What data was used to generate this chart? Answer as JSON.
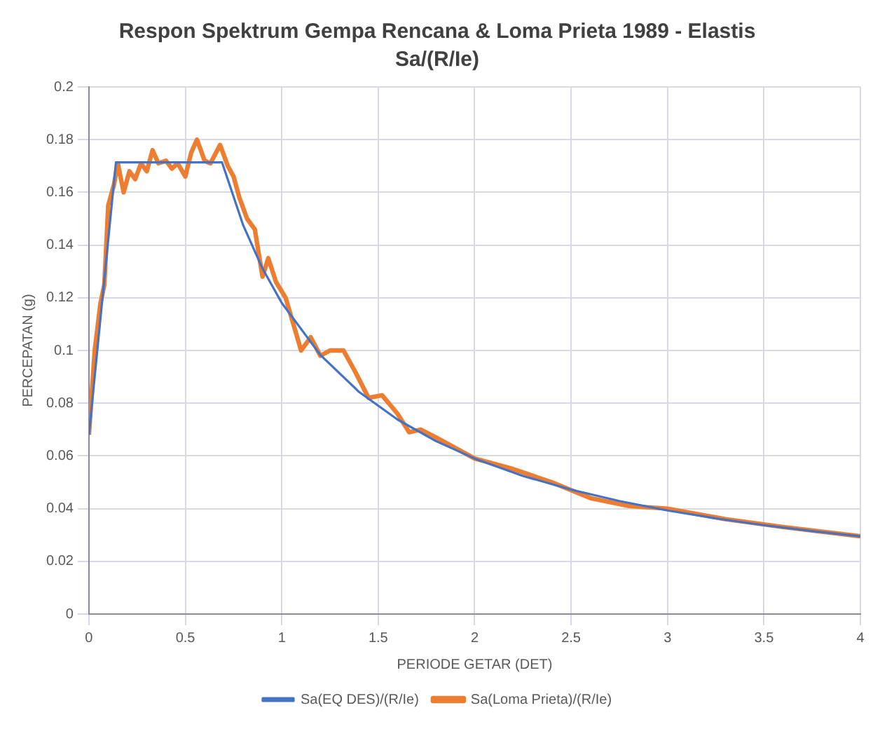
{
  "chart_data": {
    "type": "line",
    "title": "Respon Spektrum Gempa Rencana & Loma Prieta 1989 - Elastis",
    "subtitle": "Sa/(R/Ie)",
    "xlabel": "PERIODE GETAR (DET)",
    "ylabel": "PERCEPATAN (g)",
    "xlim": [
      0,
      4
    ],
    "xticks": [
      0,
      0.5,
      1,
      1.5,
      2,
      2.5,
      3,
      3.5,
      4
    ],
    "ylim": [
      0,
      0.2
    ],
    "yticks": [
      0,
      0.02,
      0.04,
      0.06,
      0.08,
      0.1,
      0.12,
      0.14,
      0.16,
      0.18,
      0.2
    ],
    "grid": true,
    "legend": "bottom",
    "marker": "none",
    "line_style": "solid",
    "series": [
      {
        "name": "Sa(EQ DES)/(R/Ie)",
        "color": "#4472c4",
        "x": [
          0,
          0.14,
          0.69,
          0.8,
          0.9,
          1.0,
          1.2,
          1.4,
          1.6,
          1.8,
          2.0,
          2.25,
          2.5,
          2.75,
          3.0,
          3.25,
          3.5,
          3.75,
          4.0
        ],
        "values": [
          0.068,
          0.1714,
          0.1714,
          0.1475,
          0.1311,
          0.118,
          0.0983,
          0.0843,
          0.0738,
          0.0656,
          0.059,
          0.0524,
          0.0472,
          0.0429,
          0.0393,
          0.0363,
          0.0337,
          0.0315,
          0.0295
        ]
      },
      {
        "name": "Sa(Loma Prieta)/(R/Ie)",
        "color": "#ed7d31",
        "x": [
          0,
          0.03,
          0.06,
          0.08,
          0.1,
          0.13,
          0.15,
          0.18,
          0.21,
          0.24,
          0.27,
          0.3,
          0.33,
          0.36,
          0.4,
          0.43,
          0.46,
          0.5,
          0.53,
          0.56,
          0.6,
          0.63,
          0.68,
          0.72,
          0.75,
          0.78,
          0.82,
          0.86,
          0.9,
          0.93,
          0.97,
          1.02,
          1.06,
          1.1,
          1.15,
          1.2,
          1.25,
          1.32,
          1.38,
          1.45,
          1.52,
          1.6,
          1.66,
          1.72,
          1.8,
          1.9,
          2.0,
          2.2,
          2.4,
          2.5,
          2.6,
          2.8,
          3.0,
          3.3,
          3.6,
          4.0
        ],
        "values": [
          0.068,
          0.1,
          0.118,
          0.125,
          0.155,
          0.163,
          0.171,
          0.16,
          0.168,
          0.165,
          0.171,
          0.168,
          0.176,
          0.171,
          0.172,
          0.169,
          0.171,
          0.166,
          0.175,
          0.18,
          0.172,
          0.171,
          0.178,
          0.17,
          0.166,
          0.158,
          0.15,
          0.146,
          0.128,
          0.135,
          0.126,
          0.12,
          0.11,
          0.1,
          0.105,
          0.098,
          0.1,
          0.1,
          0.092,
          0.082,
          0.083,
          0.076,
          0.069,
          0.07,
          0.067,
          0.063,
          0.059,
          0.055,
          0.05,
          0.047,
          0.044,
          0.041,
          0.04,
          0.036,
          0.033,
          0.0295
        ]
      }
    ]
  }
}
